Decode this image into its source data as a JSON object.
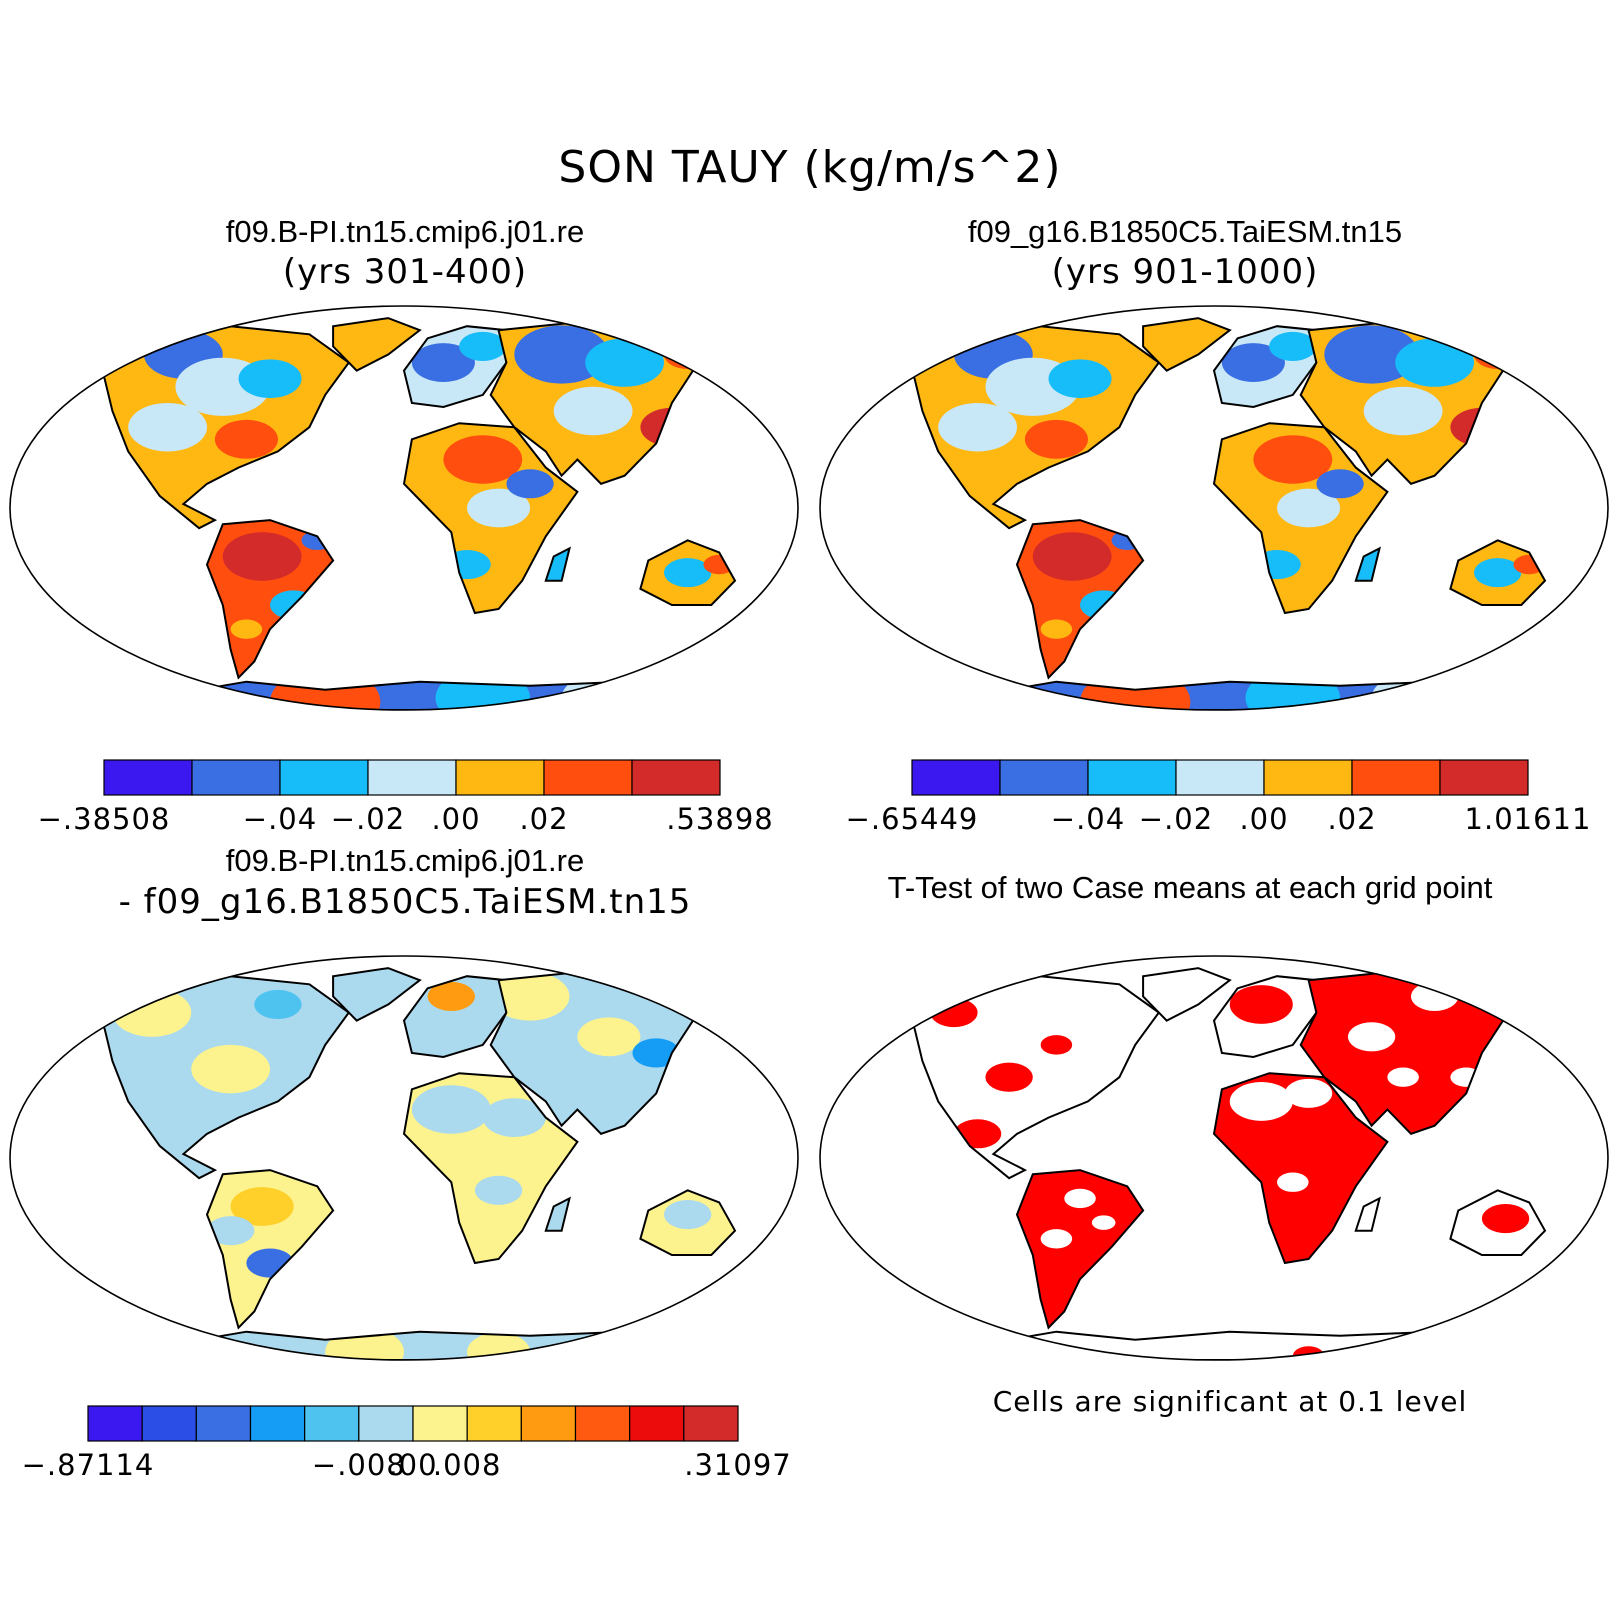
{
  "title": "SON TAUY (kg/m/s^2)",
  "panels": [
    {
      "id": "case1",
      "title": "f09.B-PI.tn15.cmip6.j01.re",
      "subtitle": "(yrs 301-400)",
      "colorbar": {
        "colors": [
          "#3b18f0",
          "#3a6ee3",
          "#17bdf8",
          "#c8e8f7",
          "#ffb712",
          "#ff4e0e",
          "#d32a2a"
        ],
        "labels": [
          "-.38508",
          "-.04",
          "-.02",
          ".00",
          ".02",
          ".53898"
        ]
      }
    },
    {
      "id": "case2",
      "title": "f09_g16.B1850C5.TaiESM.tn15",
      "subtitle": "(yrs 901-1000)",
      "colorbar": {
        "colors": [
          "#3b18f0",
          "#3a6ee3",
          "#17bdf8",
          "#c8e8f7",
          "#ffb712",
          "#ff4e0e",
          "#d32a2a"
        ],
        "labels": [
          "-.65449",
          "-.04",
          "-.02",
          ".00",
          ".02",
          "1.01611"
        ]
      }
    },
    {
      "id": "diff",
      "title": "f09.B-PI.tn15.cmip6.j01.re",
      "subtitle": "- f09_g16.B1850C5.TaiESM.tn15",
      "colorbar": {
        "colors": [
          "#3b18f0",
          "#2a4ee6",
          "#3a6ee3",
          "#159cf5",
          "#4ec3f0",
          "#abd9ee",
          "#fcf38e",
          "#ffcf2a",
          "#ff9b10",
          "#ff5a10",
          "#ec0c0c",
          "#d32a2a"
        ],
        "labels": [
          "-.87114",
          "-.008",
          ".00",
          ".008",
          ".31097"
        ]
      }
    },
    {
      "id": "ttest",
      "title": "T-Test of two Case means at each grid point",
      "note": "Cells are significant at 0.1 level",
      "significance_color": "#ff0000"
    }
  ]
}
